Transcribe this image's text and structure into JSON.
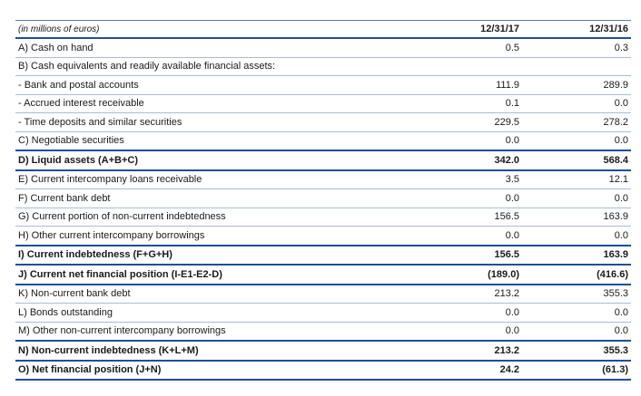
{
  "table": {
    "header": {
      "label": "(in millions of euros)",
      "col1": "12/31/17",
      "col2": "12/31/16"
    },
    "rows": [
      {
        "label": "A) Cash on hand",
        "v1": "0.5",
        "v2": "0.3",
        "total": false
      },
      {
        "label": "B) Cash equivalents and readily available financial assets:",
        "v1": "",
        "v2": "",
        "total": false
      },
      {
        "label": "- Bank and postal accounts",
        "v1": "111.9",
        "v2": "289.9",
        "total": false
      },
      {
        "label": "- Accrued interest receivable",
        "v1": "0.1",
        "v2": "0.0",
        "total": false
      },
      {
        "label": "- Time deposits and similar securities",
        "v1": "229.5",
        "v2": "278.2",
        "total": false
      },
      {
        "label": "C) Negotiable securities",
        "v1": "0.0",
        "v2": "0.0",
        "total": false
      },
      {
        "label": "D) Liquid assets (A+B+C)",
        "v1": "342.0",
        "v2": "568.4",
        "total": true
      },
      {
        "label": "E) Current intercompany loans receivable",
        "v1": "3.5",
        "v2": "12.1",
        "total": false
      },
      {
        "label": "F) Current bank debt",
        "v1": "0.0",
        "v2": "0.0",
        "total": false
      },
      {
        "label": "G) Current portion of non-current indebtedness",
        "v1": "156.5",
        "v2": "163.9",
        "total": false
      },
      {
        "label": "H) Other current intercompany borrowings",
        "v1": "0.0",
        "v2": "0.0",
        "total": false
      },
      {
        "label": "I) Current indebtedness (F+G+H)",
        "v1": "156.5",
        "v2": "163.9",
        "total": true
      },
      {
        "label": "J) Current net financial position (I-E1-E2-D)",
        "v1": "(189.0)",
        "v2": "(416.6)",
        "total": true
      },
      {
        "label": "K) Non-current bank debt",
        "v1": "213.2",
        "v2": "355.3",
        "total": false
      },
      {
        "label": "L) Bonds outstanding",
        "v1": "0.0",
        "v2": "0.0",
        "total": false
      },
      {
        "label": "M) Other non-current intercompany borrowings",
        "v1": "0.0",
        "v2": "0.0",
        "total": false
      },
      {
        "label": "N) Non-current indebtedness (K+L+M)",
        "v1": "213.2",
        "v2": "355.3",
        "total": true
      },
      {
        "label": "O) Net financial position (J+N)",
        "v1": "24.2",
        "v2": "(61.3)",
        "total": true
      }
    ]
  }
}
